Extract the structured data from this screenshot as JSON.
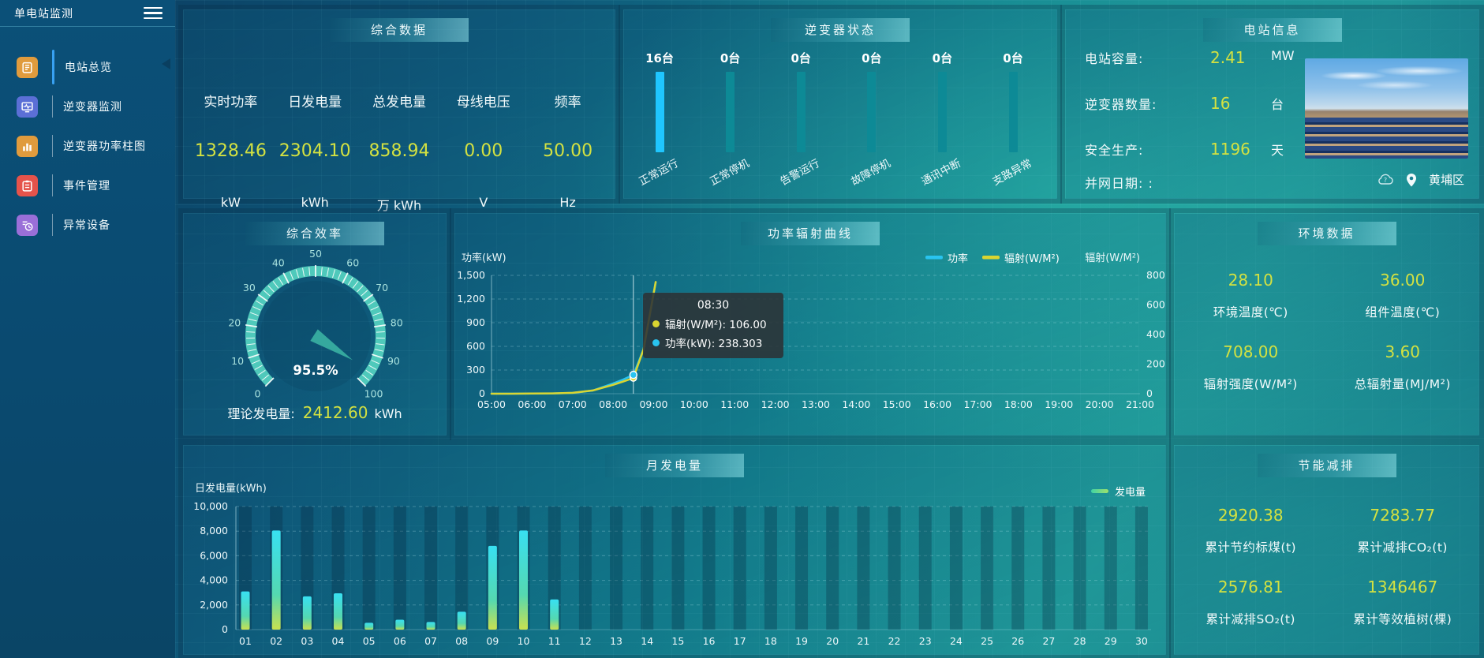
{
  "app": {
    "title": "单电站监测"
  },
  "sidebar": {
    "items": [
      {
        "label": "电站总览",
        "icon": "station-overview-icon",
        "color": "#e09b3d",
        "active": true
      },
      {
        "label": "逆变器监测",
        "icon": "inverter-monitor-icon",
        "color": "#5b6fd6",
        "active": false
      },
      {
        "label": "逆变器功率柱图",
        "icon": "inverter-power-bars-icon",
        "color": "#e09b3d",
        "active": false
      },
      {
        "label": "事件管理",
        "icon": "event-management-icon",
        "color": "#e5534b",
        "active": false
      },
      {
        "label": "异常设备",
        "icon": "abnormal-device-icon",
        "color": "#9a6fd8",
        "active": false
      }
    ]
  },
  "summary": {
    "title": "综合数据",
    "metrics": [
      {
        "label": "实时功率",
        "value": "1328.46",
        "unit": "kW"
      },
      {
        "label": "日发电量",
        "value": "2304.10",
        "unit": "kWh"
      },
      {
        "label": "总发电量",
        "value": "858.94",
        "unit": "万 kWh"
      },
      {
        "label": "母线电压",
        "value": "0.00",
        "unit": "V"
      },
      {
        "label": "频率",
        "value": "50.00",
        "unit": "Hz"
      }
    ]
  },
  "inverter_status": {
    "title": "逆变器状态",
    "bars": [
      {
        "count": "16台",
        "label": "正常运行",
        "value": 16,
        "color": "#1fc6ff"
      },
      {
        "count": "0台",
        "label": "正常停机",
        "value": 0,
        "color": "#0d8a96"
      },
      {
        "count": "0台",
        "label": "告警运行",
        "value": 0,
        "color": "#0d8a96"
      },
      {
        "count": "0台",
        "label": "故障停机",
        "value": 0,
        "color": "#0d8a96"
      },
      {
        "count": "0台",
        "label": "通讯中断",
        "value": 0,
        "color": "#0d8a96"
      },
      {
        "count": "0台",
        "label": "支路异常",
        "value": 0,
        "color": "#0d8a96"
      }
    ]
  },
  "station_info": {
    "title": "电站信息",
    "rows": [
      {
        "label": "电站容量:",
        "value": "2.41",
        "unit": "MW"
      },
      {
        "label": "逆变器数量:",
        "value": "16",
        "unit": "台"
      },
      {
        "label": "安全生产:",
        "value": "1196",
        "unit": "天"
      },
      {
        "label": "并网日期: :",
        "value": "",
        "unit": ""
      }
    ],
    "location": "黄埔区"
  },
  "efficiency": {
    "title": "综合效率",
    "gauge_value": "95.5%",
    "theory_label": "理论发电量:",
    "theory_value": "2412.60",
    "theory_unit": "kWh"
  },
  "power_curve": {
    "title": "功率辐射曲线",
    "tooltip": {
      "time": "08:30",
      "rows": [
        {
          "label": "辐射(W/M²)",
          "value": "106.00",
          "color": "#d9d531"
        },
        {
          "label": "功率(kW)",
          "value": "238.303",
          "color": "#29c4f0"
        }
      ]
    }
  },
  "env": {
    "title": "环境数据",
    "metrics": [
      {
        "value": "28.10",
        "label": "环境温度(℃)"
      },
      {
        "value": "36.00",
        "label": "组件温度(℃)"
      },
      {
        "value": "708.00",
        "label": "辐射强度(W/M²)"
      },
      {
        "value": "3.60",
        "label": "总辐射量(MJ/M²)"
      }
    ]
  },
  "monthly": {
    "title": "月发电量"
  },
  "saving": {
    "title": "节能减排",
    "metrics": [
      {
        "value": "2920.38",
        "label": "累计节约标煤(t)"
      },
      {
        "value": "7283.77",
        "label": "累计减排CO₂(t)"
      },
      {
        "value": "2576.81",
        "label": "累计减排SO₂(t)"
      },
      {
        "value": "1346467",
        "label": "累计等效植树(棵)"
      }
    ]
  },
  "chart_data": [
    {
      "type": "gauge",
      "title": "综合效率",
      "value": 95.5,
      "unit": "%",
      "min": 0,
      "max": 100,
      "tick_step": 10,
      "arc_color": "#4fc9bb",
      "label_color": "#a9e2de"
    },
    {
      "type": "line",
      "title": "功率辐射曲线",
      "x_ticks": [
        "05:00",
        "06:00",
        "07:00",
        "08:00",
        "09:00",
        "10:00",
        "11:00",
        "12:00",
        "13:00",
        "14:00",
        "15:00",
        "16:00",
        "17:00",
        "18:00",
        "19:00",
        "20:00",
        "21:00"
      ],
      "x_range_hours": [
        5,
        21
      ],
      "left_axis": {
        "label": "功率(kW)",
        "min": 0,
        "max": 1500,
        "step": 300
      },
      "right_axis": {
        "label": "辐射(W/M²)",
        "min": 0,
        "max": 800,
        "step": 200
      },
      "legend": [
        "功率",
        "辐射(W/M²)"
      ],
      "grid": true,
      "series": [
        {
          "name": "功率",
          "axis": "left",
          "color": "#29c4f0",
          "t": [
            5,
            5.5,
            6,
            6.5,
            7,
            7.5,
            8,
            8.25,
            8.5,
            8.75,
            9.05
          ],
          "values": [
            0,
            0,
            1,
            3,
            10,
            40,
            130,
            180,
            238.303,
            560,
            1410
          ]
        },
        {
          "name": "辐射(W/M²)",
          "axis": "right",
          "color": "#d9d531",
          "t": [
            5,
            5.5,
            6,
            6.5,
            7,
            7.5,
            8,
            8.25,
            8.5,
            8.75,
            9.05
          ],
          "values": [
            0,
            0,
            1,
            2,
            6,
            22,
            60,
            82,
            106,
            300,
            755
          ]
        }
      ],
      "hover": {
        "t": 8.5,
        "label": "08:30",
        "power": 238.303,
        "radiation": 106
      }
    },
    {
      "type": "bar",
      "title": "月发电量",
      "ylabel": "日发电量(kWh)",
      "ylim": [
        0,
        10000
      ],
      "ystep": 2000,
      "legend": "发电量",
      "categories": [
        "01",
        "02",
        "03",
        "04",
        "05",
        "06",
        "07",
        "08",
        "09",
        "10",
        "11",
        "12",
        "13",
        "14",
        "15",
        "16",
        "17",
        "18",
        "19",
        "20",
        "21",
        "22",
        "23",
        "24",
        "25",
        "26",
        "27",
        "28",
        "29",
        "30"
      ],
      "values": [
        3100,
        8050,
        2700,
        2950,
        550,
        800,
        620,
        1450,
        6800,
        8050,
        2450,
        0,
        0,
        0,
        0,
        0,
        0,
        0,
        0,
        0,
        0,
        0,
        0,
        0,
        0,
        0,
        0,
        0,
        0,
        0
      ]
    },
    {
      "type": "bar",
      "title": "逆变器状态",
      "categories": [
        "正常运行",
        "正常停机",
        "告警运行",
        "故障停机",
        "通讯中断",
        "支路异常"
      ],
      "values": [
        16,
        0,
        0,
        0,
        0,
        0
      ],
      "note": "pictorial equal-height status bars with unit counts above"
    }
  ]
}
